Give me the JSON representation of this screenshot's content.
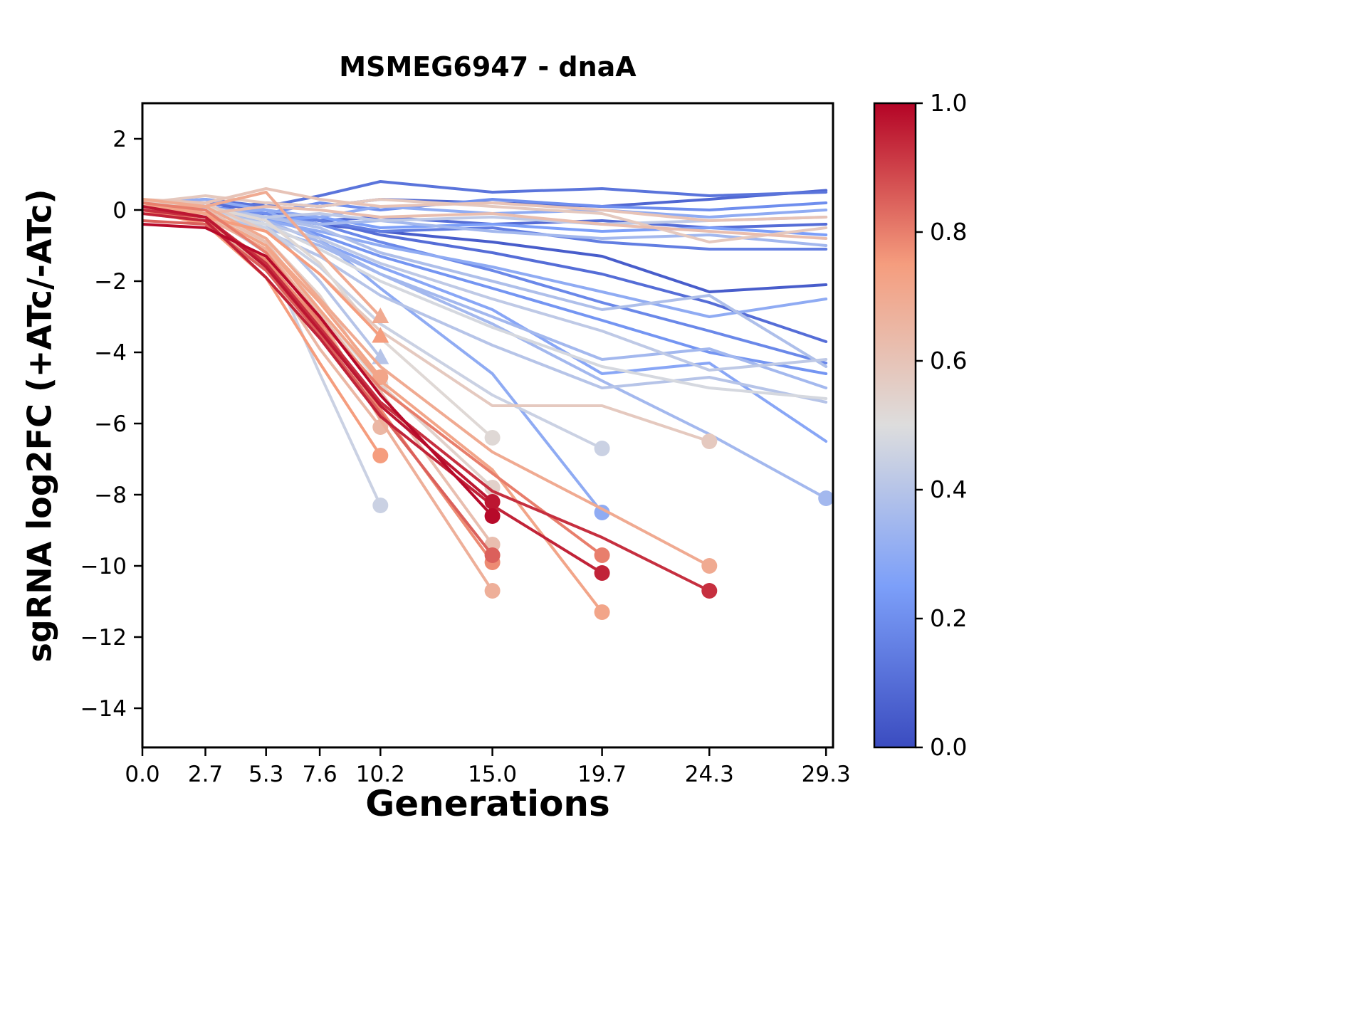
{
  "chart": {
    "title": "MSMEG6947 - dnaA",
    "xlabel": "Generations",
    "ylabel": "sgRNA log2FC (+ATc/-ATc)"
  },
  "chart_data": {
    "type": "line",
    "title": "MSMEG6947 - dnaA",
    "xlabel": "Generations",
    "ylabel": "sgRNA log2FC (+ATc/-ATc)",
    "xlim": [
      0,
      29.6
    ],
    "ylim": [
      -15.1,
      3.0
    ],
    "grid": false,
    "xticks": {
      "values": [
        0,
        2.7,
        5.3,
        7.6,
        10.2,
        15.0,
        19.7,
        24.3,
        29.3
      ],
      "labels": [
        "0.0",
        "2.7",
        "5.3",
        "7.6",
        "10.2",
        "15.0",
        "19.7",
        "24.3",
        "29.3"
      ]
    },
    "yticks": {
      "values": [
        2,
        0,
        -2,
        -4,
        -6,
        -8,
        -10,
        -12,
        -14
      ],
      "labels": [
        "2",
        "0",
        "−2",
        "−4",
        "−6",
        "−8",
        "−10",
        "−12",
        "−14"
      ]
    },
    "colorbar": {
      "ticks": [
        {
          "value": 1.0,
          "label": "1.0"
        },
        {
          "value": 0.8,
          "label": "0.8"
        },
        {
          "value": 0.6,
          "label": "0.6"
        },
        {
          "value": 0.4,
          "label": "0.4"
        },
        {
          "value": 0.2,
          "label": "0.2"
        },
        {
          "value": 0.0,
          "label": "0.0"
        }
      ],
      "colormap": "coolwarm",
      "colormap_stops": [
        [
          0.0,
          "#3b4cc0"
        ],
        [
          0.25,
          "#7c9ff9"
        ],
        [
          0.5,
          "#dddddd"
        ],
        [
          0.75,
          "#f59d7e"
        ],
        [
          1.0,
          "#b40426"
        ]
      ]
    },
    "series": [
      {
        "c": 0.12,
        "marker": null,
        "x": [
          0,
          2.7,
          5.3,
          7.6,
          10.2,
          15,
          19.7,
          24.3,
          29.3
        ],
        "y": [
          0.2,
          0.3,
          0.1,
          0.4,
          0.8,
          0.5,
          0.6,
          0.4,
          0.5
        ]
      },
      {
        "c": 0.08,
        "marker": null,
        "x": [
          0,
          2.7,
          5.3,
          7.6,
          10.2,
          15,
          19.7,
          24.3,
          29.3
        ],
        "y": [
          0.1,
          0.0,
          0.2,
          0.1,
          0.3,
          0.2,
          0.1,
          0.3,
          0.55
        ]
      },
      {
        "c": 0.2,
        "marker": null,
        "x": [
          0,
          2.7,
          5.3,
          7.6,
          10.2,
          15,
          19.7,
          24.3,
          29.3
        ],
        "y": [
          0.0,
          0.1,
          -0.1,
          0.2,
          0.0,
          0.3,
          0.1,
          0.0,
          0.2
        ]
      },
      {
        "c": 0.3,
        "marker": null,
        "x": [
          0,
          2.7,
          5.3,
          7.6,
          10.2,
          15,
          19.7,
          24.3,
          29.3
        ],
        "y": [
          0.1,
          -0.1,
          0.0,
          -0.2,
          0.1,
          -0.1,
          0.0,
          -0.2,
          0.0
        ]
      },
      {
        "c": 0.42,
        "marker": null,
        "x": [
          0,
          2.7,
          5.3,
          7.6,
          10.2,
          15,
          19.7,
          24.3,
          29.3
        ],
        "y": [
          0.2,
          0.0,
          -0.2,
          -0.1,
          -0.3,
          -0.2,
          -0.4,
          -0.3,
          -0.2
        ]
      },
      {
        "c": 0.1,
        "marker": null,
        "x": [
          0,
          2.7,
          5.3,
          7.6,
          10.2,
          15,
          19.7,
          24.3,
          29.3
        ],
        "y": [
          0.0,
          -0.2,
          -0.1,
          -0.3,
          -0.2,
          -0.4,
          -0.3,
          -0.5,
          -0.4
        ]
      },
      {
        "c": 0.25,
        "marker": null,
        "x": [
          0,
          2.7,
          5.3,
          7.6,
          10.2,
          15,
          19.7,
          24.3,
          29.3
        ],
        "y": [
          0.1,
          0.0,
          -0.3,
          -0.2,
          -0.5,
          -0.4,
          -0.6,
          -0.5,
          -0.7
        ]
      },
      {
        "c": 0.35,
        "marker": null,
        "x": [
          0,
          2.7,
          5.3,
          7.6,
          10.2,
          15,
          19.7,
          24.3,
          29.3
        ],
        "y": [
          0.0,
          0.1,
          -0.2,
          -0.4,
          -0.3,
          -0.6,
          -0.8,
          -0.7,
          -1.0
        ]
      },
      {
        "c": 0.15,
        "marker": null,
        "x": [
          0,
          2.7,
          5.3,
          7.6,
          10.2,
          15,
          19.7,
          24.3,
          29.3
        ],
        "y": [
          0.2,
          0.1,
          -0.1,
          -0.3,
          -0.6,
          -0.5,
          -0.9,
          -1.1,
          -1.1
        ]
      },
      {
        "c": 0.05,
        "marker": null,
        "x": [
          0,
          2.7,
          5.3,
          7.6,
          10.2,
          15,
          19.7,
          24.3,
          29.3
        ],
        "y": [
          0.1,
          0.0,
          -0.2,
          -0.4,
          -0.6,
          -0.9,
          -1.3,
          -2.3,
          -2.1
        ]
      },
      {
        "c": 0.1,
        "marker": null,
        "x": [
          0,
          2.7,
          5.3,
          7.6,
          10.2,
          15,
          19.7,
          24.3,
          29.3
        ],
        "y": [
          0.0,
          0.2,
          0.0,
          -0.3,
          -0.7,
          -1.2,
          -1.8,
          -2.6,
          -3.7
        ]
      },
      {
        "c": 0.3,
        "marker": null,
        "x": [
          0,
          2.7,
          5.3,
          7.6,
          10.2,
          15,
          19.7,
          24.3,
          29.3
        ],
        "y": [
          0.1,
          0.0,
          -0.3,
          -0.6,
          -1.0,
          -1.6,
          -2.3,
          -3.0,
          -2.5
        ]
      },
      {
        "c": 0.38,
        "marker": null,
        "x": [
          0,
          2.7,
          5.3,
          7.6,
          10.2,
          15,
          19.7,
          24.3,
          29.3
        ],
        "y": [
          0.2,
          0.1,
          -0.2,
          -0.5,
          -1.2,
          -2.0,
          -2.8,
          -2.4,
          -4.4
        ]
      },
      {
        "c": 0.42,
        "marker": null,
        "x": [
          0,
          2.7,
          5.3,
          7.6,
          10.2,
          15,
          19.7,
          24.3,
          29.3
        ],
        "y": [
          0.0,
          -0.1,
          -0.4,
          -0.8,
          -1.5,
          -2.5,
          -3.4,
          -4.5,
          -4.2
        ]
      },
      {
        "c": 0.35,
        "marker": null,
        "x": [
          0,
          2.7,
          5.3,
          7.6,
          10.2,
          15,
          19.7,
          24.3,
          29.3
        ],
        "y": [
          0.1,
          0.0,
          -0.5,
          -1.0,
          -1.8,
          -3.0,
          -4.2,
          -3.9,
          -5.0
        ]
      },
      {
        "c": 0.28,
        "marker": null,
        "x": [
          0,
          2.7,
          5.3,
          7.6,
          10.2,
          15,
          19.7,
          24.3,
          29.3
        ],
        "y": [
          0.0,
          0.1,
          -0.3,
          -0.9,
          -1.6,
          -2.8,
          -4.6,
          -4.3,
          -6.5
        ]
      },
      {
        "c": 0.48,
        "marker": null,
        "x": [
          0,
          2.7,
          5.3,
          7.6,
          10.2,
          15,
          19.7,
          24.3,
          29.3
        ],
        "y": [
          0.1,
          -0.1,
          -0.4,
          -1.1,
          -2.0,
          -3.3,
          -4.4,
          -5.0,
          -5.3
        ]
      },
      {
        "c": 0.22,
        "marker": null,
        "x": [
          0,
          2.7,
          5.3,
          7.6,
          10.2,
          15,
          19.7,
          24.3,
          29.3
        ],
        "y": [
          0.2,
          0.0,
          -0.2,
          -0.7,
          -1.3,
          -2.2,
          -3.1,
          -4.0,
          -4.6
        ]
      },
      {
        "c": 0.18,
        "marker": null,
        "x": [
          0,
          2.7,
          5.3,
          7.6,
          10.2,
          15,
          19.7,
          24.3,
          29.3
        ],
        "y": [
          0.1,
          0.1,
          -0.1,
          -0.4,
          -0.9,
          -1.7,
          -2.6,
          -3.4,
          -4.3
        ]
      },
      {
        "c": 0.4,
        "marker": null,
        "x": [
          0,
          2.7,
          5.3,
          7.6,
          10.2,
          15,
          19.7,
          24.3,
          29.3
        ],
        "y": [
          0.0,
          0.0,
          -0.6,
          -1.3,
          -2.4,
          -3.8,
          -5.0,
          -4.7,
          -5.4
        ]
      },
      {
        "c": 0.6,
        "marker": null,
        "x": [
          0,
          2.7,
          5.3,
          7.6,
          10.2,
          15,
          19.7,
          24.3,
          29.3
        ],
        "y": [
          0.3,
          0.2,
          0.6,
          0.3,
          0.1,
          0.2,
          0.0,
          -0.3,
          -0.2
        ]
      },
      {
        "c": 0.62,
        "marker": null,
        "x": [
          0,
          2.7,
          5.3,
          7.6,
          10.2,
          15,
          19.7,
          24.3,
          29.3
        ],
        "y": [
          0.0,
          -0.1,
          0.1,
          0.0,
          -0.2,
          -0.1,
          -0.4,
          -0.6,
          -0.8
        ]
      },
      {
        "c": 0.58,
        "marker": null,
        "x": [
          0,
          2.7,
          5.3,
          7.6,
          10.2,
          15,
          19.7,
          24.3,
          29.3
        ],
        "y": [
          0.2,
          0.4,
          0.2,
          0.1,
          0.3,
          0.1,
          -0.1,
          -0.9,
          -0.5
        ]
      },
      {
        "c": 0.35,
        "marker": "circle",
        "x": [
          0,
          2.7,
          5.3,
          7.6,
          10.2,
          15,
          19.7,
          24.3,
          29.3
        ],
        "y": [
          0.1,
          0.0,
          -0.3,
          -0.9,
          -1.8,
          -3.2,
          -4.8,
          -6.3,
          -8.1
        ]
      },
      {
        "c": 0.58,
        "marker": "circle",
        "x": [
          0,
          2.7,
          5.3,
          7.6,
          10.2,
          15,
          19.7,
          24.3
        ],
        "y": [
          0.0,
          0.2,
          -0.6,
          -1.8,
          -3.4,
          -5.5,
          -5.5,
          -6.5
        ]
      },
      {
        "c": 0.3,
        "marker": "circle",
        "x": [
          0,
          2.7,
          5.3,
          7.6,
          10.2,
          15,
          19.7
        ],
        "y": [
          0.2,
          0.3,
          0.0,
          -0.8,
          -2.2,
          -4.6,
          -8.5
        ]
      },
      {
        "c": 0.45,
        "marker": "circle",
        "x": [
          0,
          2.7,
          5.3,
          7.6,
          10.2,
          15,
          19.7
        ],
        "y": [
          0.1,
          0.0,
          -0.5,
          -1.6,
          -3.2,
          -5.2,
          -6.7
        ]
      },
      {
        "c": 0.52,
        "marker": "circle",
        "x": [
          0,
          2.7,
          5.3,
          7.6,
          10.2,
          15
        ],
        "y": [
          0.2,
          0.1,
          -0.3,
          -1.5,
          -3.6,
          -6.4
        ]
      },
      {
        "c": 0.55,
        "marker": "circle",
        "x": [
          0,
          2.7,
          5.3,
          7.6,
          10.2,
          15
        ],
        "y": [
          0.0,
          -0.1,
          -0.8,
          -2.4,
          -4.9,
          -7.8
        ]
      },
      {
        "c": 0.72,
        "marker": "circle",
        "x": [
          0,
          2.7,
          5.3,
          7.6,
          10.2
        ],
        "y": [
          0.1,
          -0.1,
          -1.0,
          -2.6,
          -4.7
        ]
      },
      {
        "c": 0.5,
        "marker": "circle",
        "x": [
          0,
          2.7,
          5.3,
          7.6,
          10.2
        ],
        "y": [
          0.0,
          -0.2,
          -0.9,
          -2.8,
          -4.9
        ]
      },
      {
        "c": 0.65,
        "marker": "circle",
        "x": [
          0,
          2.7,
          5.3,
          7.6,
          10.2
        ],
        "y": [
          -0.1,
          -0.3,
          -1.6,
          -3.9,
          -6.1
        ]
      },
      {
        "c": 0.75,
        "marker": "circle",
        "x": [
          0,
          2.7,
          5.3,
          7.6,
          10.2
        ],
        "y": [
          0.0,
          -0.4,
          -1.9,
          -4.3,
          -6.9
        ]
      },
      {
        "c": 0.45,
        "marker": "circle",
        "x": [
          0,
          2.7,
          5.3,
          7.6,
          10.2
        ],
        "y": [
          0.1,
          -0.1,
          -1.2,
          -4.6,
          -8.3
        ]
      },
      {
        "c": 0.7,
        "marker": "triangle",
        "x": [
          0,
          2.7,
          5.3,
          7.6,
          10.2
        ],
        "y": [
          0.3,
          0.1,
          0.5,
          -1.2,
          -3.0
        ]
      },
      {
        "c": 0.75,
        "marker": "triangle",
        "x": [
          0,
          2.7,
          5.3,
          7.6,
          10.2
        ],
        "y": [
          0.0,
          -0.2,
          -0.6,
          -1.8,
          -3.55
        ]
      },
      {
        "c": 0.4,
        "marker": "triangle",
        "x": [
          0,
          2.7,
          5.3,
          7.6,
          10.2
        ],
        "y": [
          0.2,
          0.0,
          -0.4,
          -2.0,
          -4.15
        ]
      },
      {
        "c": 0.99,
        "marker": "circle",
        "x": [
          0,
          2.7,
          5.3,
          7.6,
          10.2,
          15
        ],
        "y": [
          -0.4,
          -0.5,
          -1.3,
          -3.0,
          -5.2,
          -8.6
        ]
      },
      {
        "c": 0.97,
        "marker": "circle",
        "x": [
          0,
          2.7,
          5.3,
          7.6,
          10.2,
          15
        ],
        "y": [
          0.1,
          -0.2,
          -1.6,
          -3.4,
          -5.5,
          -8.2
        ]
      },
      {
        "c": 0.85,
        "marker": "circle",
        "x": [
          0,
          2.7,
          5.3,
          7.6,
          10.2,
          15
        ],
        "y": [
          -0.3,
          -0.4,
          -1.7,
          -3.5,
          -5.7,
          -9.7
        ]
      },
      {
        "c": 0.78,
        "marker": "circle",
        "x": [
          0,
          2.7,
          5.3,
          7.6,
          10.2,
          15
        ],
        "y": [
          0.0,
          -0.3,
          -1.4,
          -3.2,
          -5.6,
          -9.9
        ]
      },
      {
        "c": 0.68,
        "marker": "circle",
        "x": [
          0,
          2.7,
          5.3,
          7.6,
          10.2,
          15
        ],
        "y": [
          0.1,
          -0.2,
          -1.1,
          -3.0,
          -5.9,
          -10.7
        ]
      },
      {
        "c": 0.62,
        "marker": "circle",
        "x": [
          0,
          2.7,
          5.3,
          7.6,
          10.2,
          15
        ],
        "y": [
          0.0,
          0.0,
          -0.9,
          -2.9,
          -5.1,
          -9.4
        ]
      },
      {
        "c": 0.95,
        "marker": "circle",
        "x": [
          0,
          2.7,
          5.3,
          7.6,
          10.2,
          15,
          19.7
        ],
        "y": [
          -0.1,
          -0.3,
          -1.9,
          -3.6,
          -5.8,
          -8.3,
          -10.2
        ]
      },
      {
        "c": 0.8,
        "marker": "circle",
        "x": [
          0,
          2.7,
          5.3,
          7.6,
          10.2,
          15,
          19.7
        ],
        "y": [
          0.2,
          0.0,
          -1.2,
          -3.1,
          -5.0,
          -7.4,
          -9.7
        ]
      },
      {
        "c": 0.72,
        "marker": "circle",
        "x": [
          0,
          2.7,
          5.3,
          7.6,
          10.2,
          15,
          19.7
        ],
        "y": [
          0.2,
          -0.1,
          -1.0,
          -2.8,
          -4.8,
          -7.3,
          -11.3
        ]
      },
      {
        "c": 0.93,
        "marker": "circle",
        "x": [
          0,
          2.7,
          5.3,
          7.6,
          10.2,
          15,
          19.7,
          24.3
        ],
        "y": [
          0.0,
          -0.2,
          -1.5,
          -3.3,
          -5.4,
          -7.9,
          -9.2,
          -10.7
        ]
      },
      {
        "c": 0.7,
        "marker": "circle",
        "x": [
          0,
          2.7,
          5.3,
          7.6,
          10.2,
          15,
          19.7,
          24.3
        ],
        "y": [
          0.1,
          0.1,
          -0.8,
          -2.5,
          -4.4,
          -6.8,
          -8.4,
          -10.0
        ]
      }
    ]
  }
}
